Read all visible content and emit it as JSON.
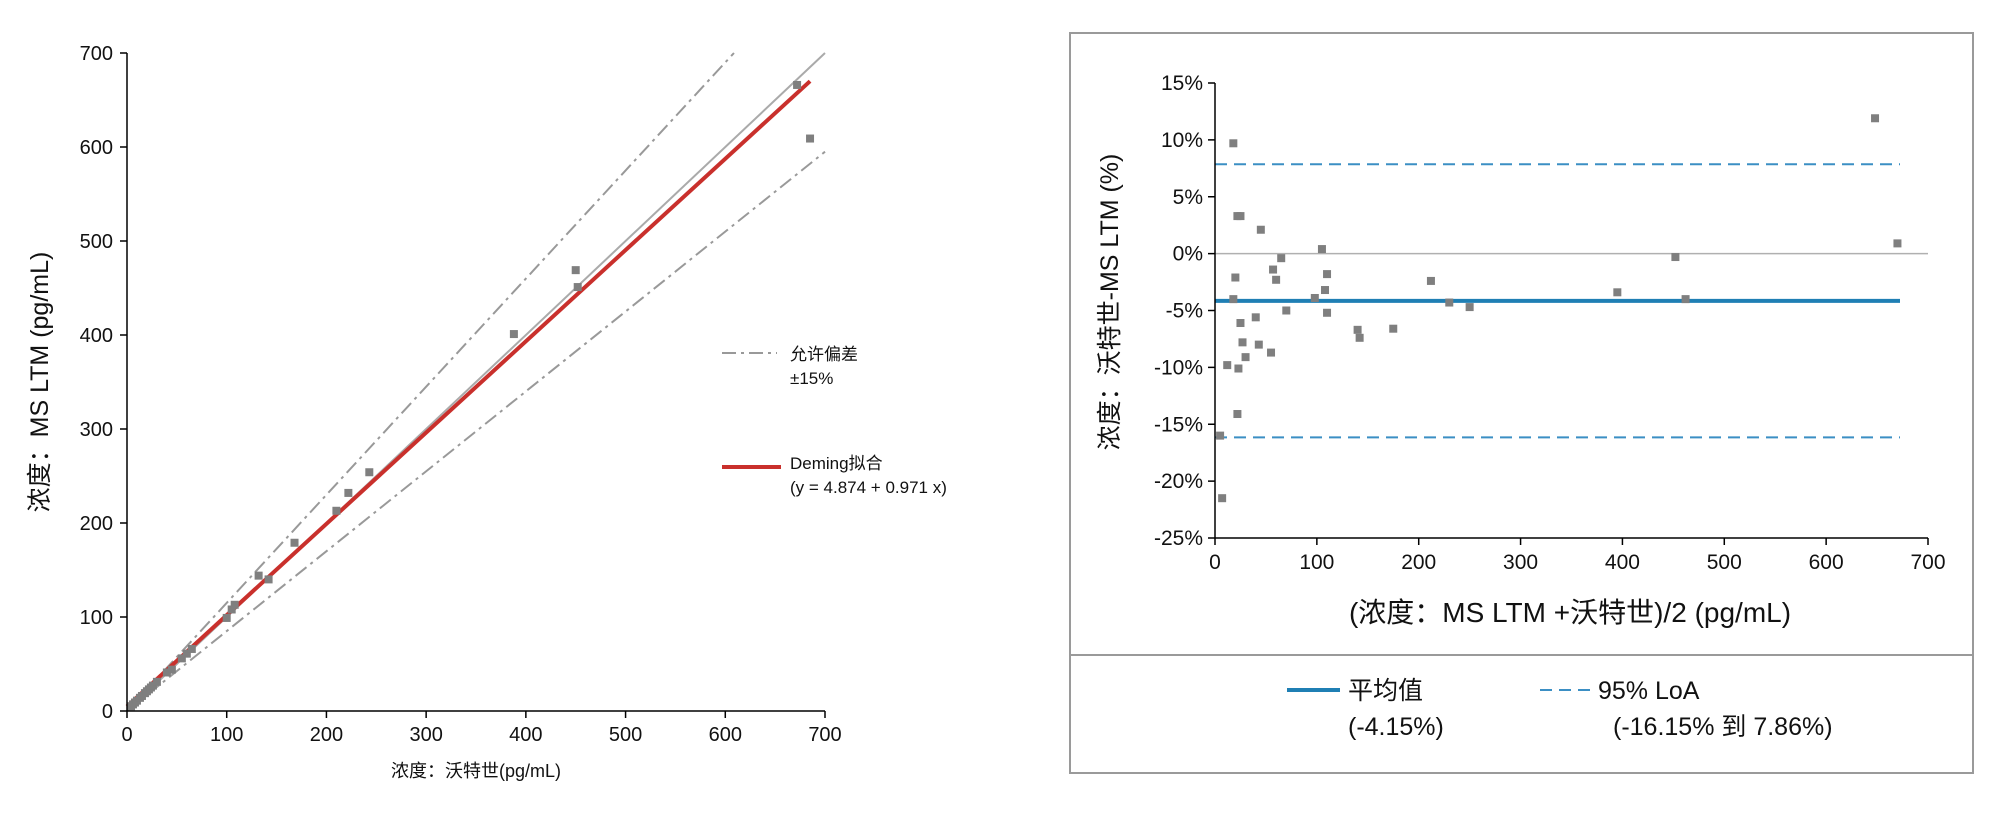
{
  "chart_data": [
    {
      "type": "scatter",
      "title": "",
      "xlabel": "浓度：沃特世(pg/mL)",
      "ylabel": "浓度：MS LTM (pg/mL)",
      "xlim": [
        0,
        700
      ],
      "ylim": [
        0,
        700
      ],
      "xticks": [
        "0",
        "100",
        "200",
        "300",
        "400",
        "500",
        "600",
        "700"
      ],
      "yticks": [
        "0",
        "100",
        "200",
        "300",
        "400",
        "500",
        "600",
        "700"
      ],
      "grid": false,
      "legend_position": "right",
      "colors": {
        "points": "#7f7f7f",
        "fit": "#c9302c",
        "identity": "#aaaaaa",
        "tolerance": "#999999"
      },
      "legend": {
        "tolerance_label_1": "允许偏差",
        "tolerance_label_2": "±15%",
        "fit_label_1": "Deming拟合",
        "fit_label_2": "(y = 4.874 + 0.971 x)"
      },
      "fit": {
        "intercept": 4.874,
        "slope": 0.971,
        "x_range": [
          0,
          685
        ]
      },
      "identity_line": {
        "slope": 1
      },
      "tolerance_slopes": [
        1.15,
        0.85
      ],
      "points": {
        "x": [
          4,
          6,
          8,
          10,
          13,
          15,
          18,
          20,
          22,
          24,
          26,
          30,
          40,
          45,
          55,
          60,
          65,
          100,
          105,
          108,
          132,
          142,
          168,
          210,
          222,
          243,
          388,
          450,
          452,
          672,
          685
        ],
        "y": [
          5,
          7,
          9,
          11,
          14,
          16,
          19,
          21,
          23,
          25,
          27,
          31,
          41,
          44,
          56,
          61,
          66,
          99,
          108,
          113,
          144,
          140,
          179,
          213,
          232,
          254,
          401,
          469,
          451,
          666,
          609
        ]
      }
    },
    {
      "type": "scatter",
      "title": "",
      "xlabel": "(浓度：MS LTM +沃特世)/2 (pg/mL)",
      "ylabel": "浓度：沃特世-MS LTM (%)",
      "xlim": [
        0,
        700
      ],
      "ylim": [
        -25,
        15
      ],
      "xticks": [
        "0",
        "100",
        "200",
        "300",
        "400",
        "500",
        "600",
        "700"
      ],
      "yticks": [
        "15%",
        "10%",
        "5%",
        "0%",
        "-5%",
        "-10%",
        "-15%",
        "-20%",
        "-25%"
      ],
      "grid": false,
      "legend_position": "bottom",
      "colors": {
        "points": "#7f7f7f",
        "mean": "#1f7fb4",
        "loa": "#3b8fc4",
        "zero": "#b0b0b0"
      },
      "mean_value": -4.15,
      "loa": [
        -16.15,
        7.86
      ],
      "legend": {
        "mean_label_1": "平均值",
        "mean_label_2": "(-4.15%)",
        "loa_label_1": "95% LoA",
        "loa_label_2": "(-16.15% 到 7.86%)"
      },
      "points": {
        "x": [
          5,
          7,
          12,
          18,
          18,
          20,
          22,
          22,
          23,
          25,
          25,
          27,
          30,
          40,
          43,
          45,
          55,
          57,
          60,
          65,
          70,
          98,
          105,
          108,
          110,
          110,
          140,
          142,
          175,
          212,
          230,
          250,
          395,
          452,
          462,
          648,
          670
        ],
        "y": [
          -16,
          -21.5,
          -9.8,
          -4,
          9.7,
          -2.1,
          3.3,
          -14.1,
          -10.1,
          3.3,
          -6.1,
          -7.8,
          -9.1,
          -5.6,
          -8,
          2.1,
          -8.7,
          -1.4,
          -2.3,
          -0.4,
          -5,
          -3.9,
          0.4,
          -3.2,
          -1.8,
          -5.2,
          -6.7,
          -7.4,
          -6.6,
          -2.4,
          -4.3,
          -4.7,
          -3.4,
          -0.3,
          -4.0,
          11.9,
          0.9
        ]
      }
    }
  ]
}
